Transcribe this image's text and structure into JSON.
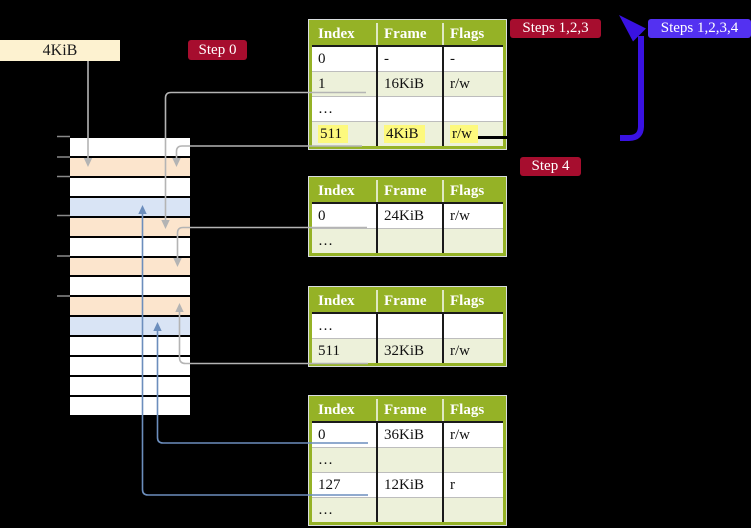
{
  "page_box": {
    "label": "4KiB"
  },
  "step_labels": {
    "step0": "Step 0",
    "steps123": "Steps 1,2,3",
    "steps1234": "Steps 1,2,3,4",
    "step4": "Step 4"
  },
  "tables": [
    {
      "name": "page-table-level-1",
      "headers": [
        "Index",
        "Frame",
        "Flags"
      ],
      "rows": [
        {
          "cells": [
            "0",
            "-",
            "-"
          ]
        },
        {
          "cells": [
            "1",
            "16KiB",
            "r/w"
          ]
        },
        {
          "cells": [
            "…",
            "",
            ""
          ]
        },
        {
          "cells": [
            "511",
            "4KiB",
            "r/w"
          ],
          "highlight": true
        }
      ]
    },
    {
      "name": "page-table-level-2",
      "headers": [
        "Index",
        "Frame",
        "Flags"
      ],
      "rows": [
        {
          "cells": [
            "0",
            "24KiB",
            "r/w"
          ]
        },
        {
          "cells": [
            "…",
            "",
            ""
          ]
        }
      ]
    },
    {
      "name": "page-table-level-3",
      "headers": [
        "Index",
        "Frame",
        "Flags"
      ],
      "rows": [
        {
          "cells": [
            "…",
            "",
            ""
          ]
        },
        {
          "cells": [
            "511",
            "32KiB",
            "r/w"
          ]
        }
      ]
    },
    {
      "name": "page-table-level-4",
      "headers": [
        "Index",
        "Frame",
        "Flags"
      ],
      "rows": [
        {
          "cells": [
            "0",
            "36KiB",
            "r/w"
          ]
        },
        {
          "cells": [
            "…",
            "",
            ""
          ]
        },
        {
          "cells": [
            "127",
            "12KiB",
            "r"
          ]
        },
        {
          "cells": [
            "…",
            "",
            ""
          ]
        }
      ]
    }
  ],
  "memory_strip": {
    "rows": [
      "white",
      "orange",
      "white",
      "blue",
      "orange",
      "white",
      "orange",
      "white",
      "orange",
      "blue",
      "white",
      "white",
      "white",
      "white"
    ]
  },
  "colors": {
    "background": "#000000",
    "table_header_green": "#95b226",
    "table_row_shaded": "#edf1da",
    "highlight_yellow": "#fdf97d",
    "strip_white": "#ffffff",
    "strip_orange": "#fce5cd",
    "strip_blue": "#d9e4f5",
    "label_red": "#a60d2e",
    "label_violet": "#5331f1",
    "arrow_violet": "#3912e2",
    "connector_gray": "#b4b4b4",
    "connector_blue": "#6c8ebd",
    "page_box_cream": "#fdf2d0"
  }
}
